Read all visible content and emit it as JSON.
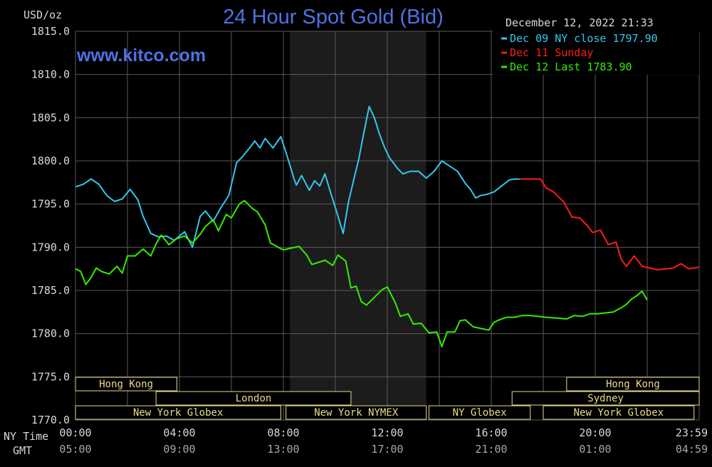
{
  "colors": {
    "background": "#000000",
    "grid": "#5a5a5a",
    "nymex_shade": "#1c1c1c",
    "title": "#4f72e3",
    "label": "#d8d8d8",
    "dec09": "#33c8f0",
    "dec11": "#ff1b1b",
    "dec12": "#33ee00",
    "session_text": "#e9dc8a",
    "session_border": "#e9dc8a"
  },
  "header": {
    "unit_label": "USD/oz",
    "title": "24 Hour Spot Gold (Bid)",
    "website": "www.kitco.com",
    "timestamp": "December 12, 2022 21:33"
  },
  "axis": {
    "ny_time_label": "NY Time",
    "gmt_label": "GMT"
  },
  "chart_data": {
    "type": "line",
    "x_unit": "hours (NY time)",
    "xlim": [
      0,
      24
    ],
    "ylim": [
      1770,
      1815
    ],
    "y_ticks": [
      "1815.0",
      "1810.0",
      "1805.0",
      "1800.0",
      "1795.0",
      "1790.0",
      "1785.0",
      "1780.0",
      "1775.0",
      "1770.0"
    ],
    "x_ticks": [
      {
        "x": 0,
        "ny": "00:00",
        "gmt": "05:00"
      },
      {
        "x": 4,
        "ny": "04:00",
        "gmt": "09:00"
      },
      {
        "x": 8,
        "ny": "08:00",
        "gmt": "13:00"
      },
      {
        "x": 12,
        "ny": "12:00",
        "gmt": "17:00"
      },
      {
        "x": 16,
        "ny": "16:00",
        "gmt": "21:00"
      },
      {
        "x": 20,
        "ny": "20:00",
        "gmt": "01:00"
      },
      {
        "x": 24,
        "ny": "23:59",
        "gmt": "04:59"
      }
    ],
    "grid": true,
    "nymex_shaded_hours": [
      8.25,
      13.5
    ],
    "series": [
      {
        "name": "Dec 09 NY close 1797.90",
        "color": "#33c8f0",
        "x": [
          0,
          0.3,
          0.6,
          0.9,
          1.2,
          1.5,
          1.8,
          2.1,
          2.4,
          2.6,
          2.9,
          3.2,
          3.5,
          3.8,
          4.2,
          4.5,
          4.8,
          5.0,
          5.3,
          5.6,
          5.9,
          6.2,
          6.4,
          6.7,
          6.9,
          7.1,
          7.3,
          7.6,
          7.9,
          8.1,
          8.3,
          8.4,
          8.5,
          8.7,
          9.0,
          9.2,
          9.4,
          9.6,
          9.8,
          10.0,
          10.3,
          10.5,
          10.7,
          10.9,
          11.1,
          11.3,
          11.5,
          11.7,
          11.9,
          12.1,
          12.4,
          12.6,
          12.9,
          13.2,
          13.5,
          13.8,
          14.1,
          14.4,
          14.7,
          15.0,
          15.2,
          15.4,
          15.6,
          15.8,
          16.1,
          16.4,
          16.7,
          16.9,
          17.1
        ],
        "values": [
          1797.0,
          1797.3,
          1797.9,
          1797.3,
          1796.0,
          1795.3,
          1795.6,
          1796.7,
          1795.5,
          1793.6,
          1791.6,
          1791.2,
          1791.3,
          1790.8,
          1791.8,
          1790.0,
          1793.6,
          1794.2,
          1793.0,
          1794.6,
          1796.0,
          1799.8,
          1800.4,
          1801.5,
          1802.3,
          1801.5,
          1802.6,
          1801.5,
          1802.8,
          1801.0,
          1799.0,
          1798.0,
          1797.2,
          1798.3,
          1796.6,
          1797.7,
          1797.1,
          1798.5,
          1796.5,
          1794.6,
          1791.6,
          1795.2,
          1797.7,
          1800.2,
          1803.3,
          1806.3,
          1805.0,
          1803.1,
          1801.5,
          1800.3,
          1799.1,
          1798.5,
          1798.8,
          1798.8,
          1798.0,
          1798.8,
          1800.0,
          1799.4,
          1798.8,
          1797.4,
          1796.7,
          1795.7,
          1796.0,
          1796.1,
          1796.4,
          1797.1,
          1797.8,
          1797.9,
          1797.9
        ]
      },
      {
        "name": "Dec 11 Sunday",
        "color": "#ff1b1b",
        "x": [
          17.1,
          17.5,
          17.9,
          18.1,
          18.4,
          18.8,
          19.1,
          19.4,
          19.7,
          19.9,
          20.2,
          20.5,
          20.8,
          21.0,
          21.2,
          21.5,
          21.8,
          22.1,
          22.4,
          22.7,
          23.0,
          23.3,
          23.6,
          24.0
        ],
        "values": [
          1797.9,
          1797.9,
          1797.9,
          1796.9,
          1796.4,
          1795.2,
          1793.5,
          1793.4,
          1792.5,
          1791.7,
          1792.0,
          1790.3,
          1790.6,
          1788.6,
          1787.8,
          1789.0,
          1787.8,
          1787.6,
          1787.4,
          1787.5,
          1787.6,
          1788.1,
          1787.5,
          1787.7
        ]
      },
      {
        "name": "Dec 12 Last 1783.90",
        "color": "#33ee00",
        "x": [
          0,
          0.2,
          0.4,
          0.6,
          0.8,
          1.0,
          1.3,
          1.6,
          1.8,
          2.0,
          2.3,
          2.6,
          2.9,
          3.1,
          3.3,
          3.6,
          3.9,
          4.2,
          4.5,
          4.8,
          5.0,
          5.3,
          5.5,
          5.8,
          6.0,
          6.3,
          6.5,
          6.8,
          7.0,
          7.3,
          7.5,
          7.8,
          8.0,
          8.3,
          8.6,
          8.9,
          9.1,
          9.3,
          9.6,
          9.9,
          10.1,
          10.4,
          10.6,
          10.8,
          11.0,
          11.2,
          11.5,
          11.8,
          12.0,
          12.3,
          12.5,
          12.8,
          13.0,
          13.3,
          13.6,
          13.9,
          14.1,
          14.3,
          14.6,
          14.8,
          15.0,
          15.3,
          15.6,
          15.9,
          16.1,
          16.3,
          16.6,
          16.9,
          17.2,
          17.5,
          17.8,
          18.1,
          18.5,
          18.9,
          19.2,
          19.5,
          19.8,
          20.1,
          20.4,
          20.7,
          21.0,
          21.2,
          21.4,
          21.6,
          21.8,
          22.0
        ],
        "values": [
          1787.5,
          1787.2,
          1785.7,
          1786.5,
          1787.6,
          1787.2,
          1786.9,
          1787.8,
          1787.0,
          1789.0,
          1789.0,
          1789.8,
          1789.0,
          1790.4,
          1791.4,
          1790.3,
          1791.0,
          1791.3,
          1790.5,
          1791.5,
          1792.4,
          1793.2,
          1791.9,
          1793.8,
          1793.4,
          1795.0,
          1795.4,
          1794.5,
          1794.1,
          1792.6,
          1790.5,
          1790.0,
          1789.7,
          1789.9,
          1790.1,
          1789.1,
          1788.0,
          1788.2,
          1788.5,
          1787.9,
          1789.1,
          1788.4,
          1785.3,
          1785.5,
          1783.7,
          1783.3,
          1784.2,
          1785.1,
          1785.4,
          1783.6,
          1782.0,
          1782.3,
          1781.1,
          1781.2,
          1780.1,
          1780.2,
          1778.5,
          1780.2,
          1780.2,
          1781.5,
          1781.6,
          1780.8,
          1780.6,
          1780.4,
          1781.3,
          1781.6,
          1781.9,
          1781.9,
          1782.1,
          1782.1,
          1782.0,
          1781.9,
          1781.8,
          1781.7,
          1782.1,
          1782.0,
          1782.3,
          1782.3,
          1782.4,
          1782.5,
          1783.0,
          1783.4,
          1784.0,
          1784.4,
          1784.9,
          1783.9
        ]
      }
    ],
    "sessions": [
      {
        "label": "Hong Kong",
        "start": 0,
        "end": 3.9,
        "row": 0
      },
      {
        "label": "Hong Kong",
        "start": 18.9,
        "end": 24,
        "row": 0
      },
      {
        "label": "London",
        "start": 3.1,
        "end": 10.6,
        "row": 1
      },
      {
        "label": "Sydney",
        "start": 16.8,
        "end": 24,
        "row": 1
      },
      {
        "label": "New York Globex",
        "start": 0,
        "end": 7.9,
        "row": 2
      },
      {
        "label": "New York NYMEX",
        "start": 8.1,
        "end": 13.5,
        "row": 2
      },
      {
        "label": "NY Globex",
        "start": 13.6,
        "end": 17.5,
        "row": 2
      },
      {
        "label": "New York Globex",
        "start": 18.0,
        "end": 23.8,
        "row": 2
      }
    ]
  }
}
